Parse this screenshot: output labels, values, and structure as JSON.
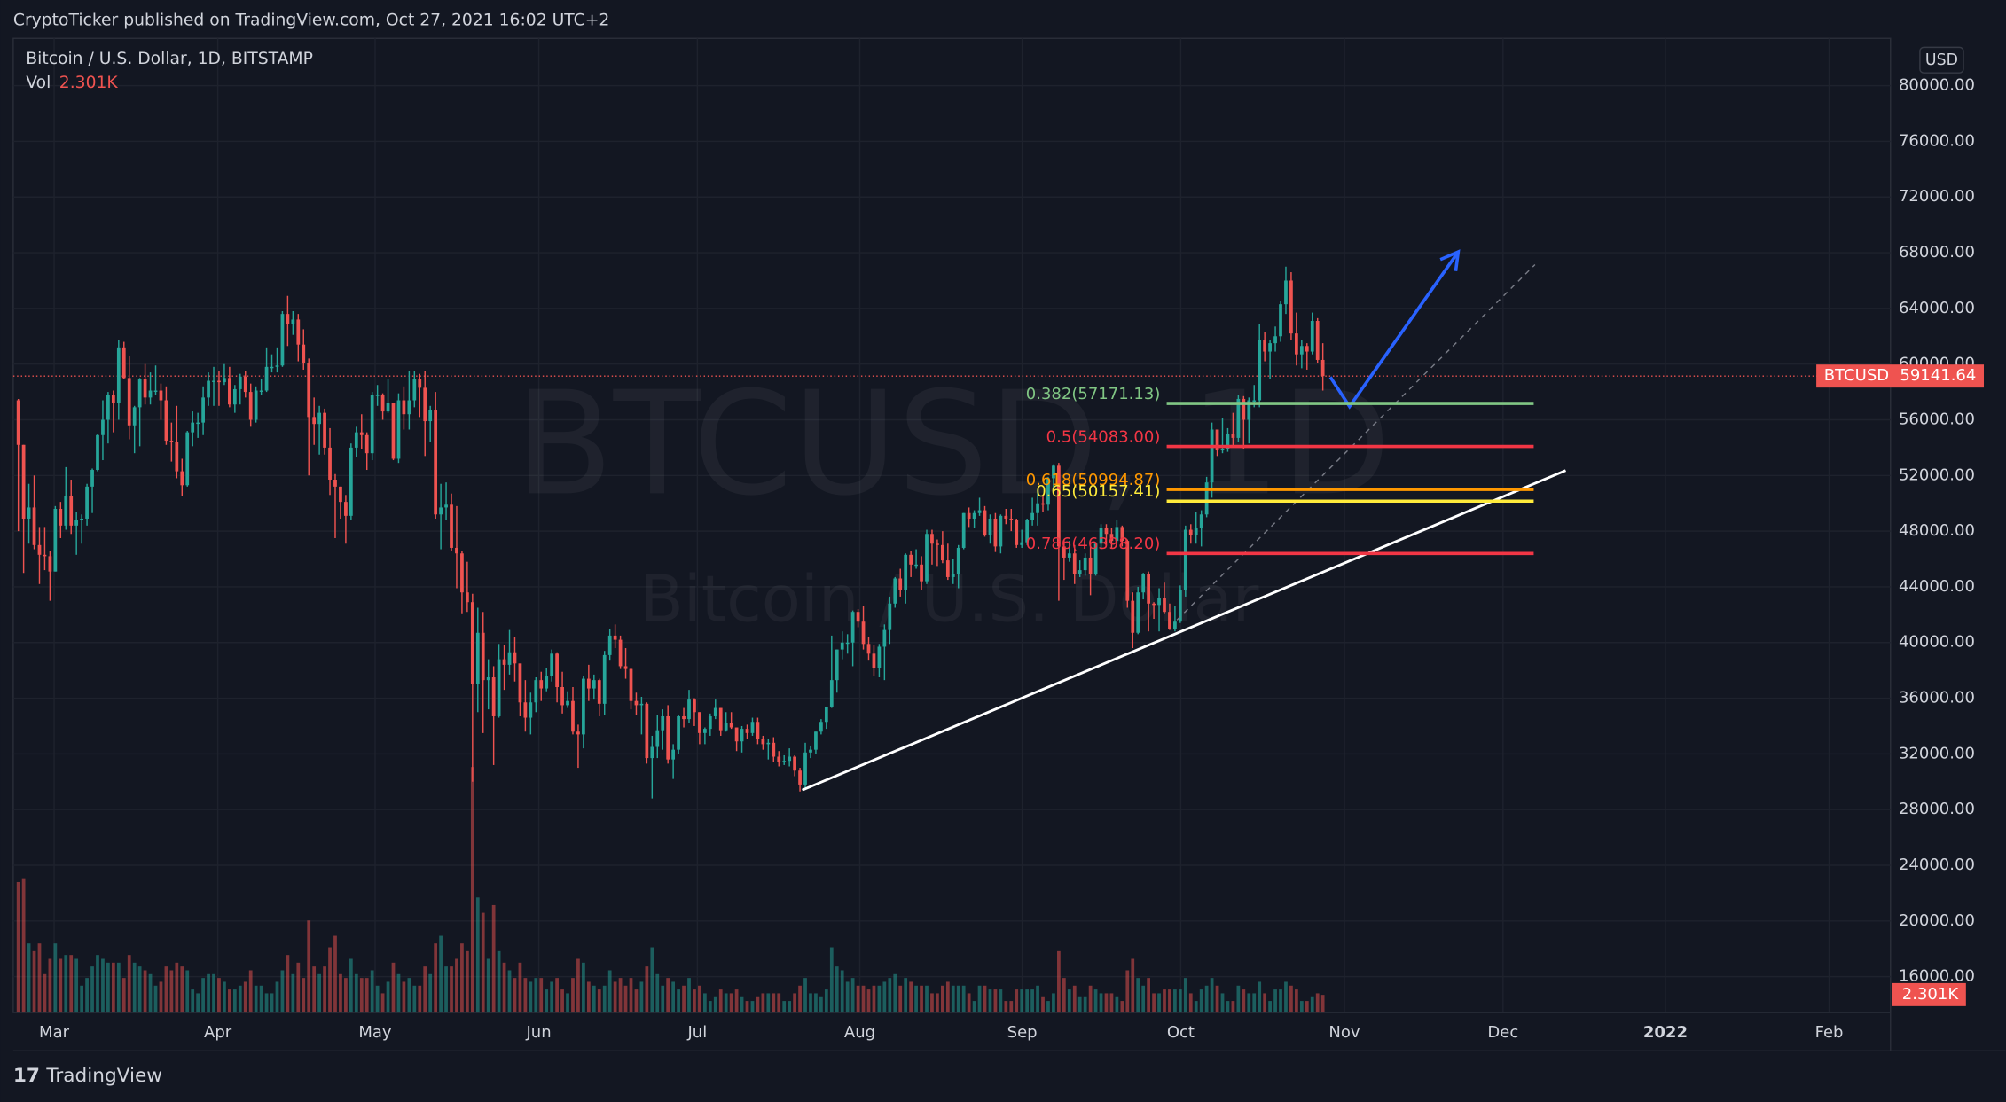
{
  "chart_data": {
    "type": "candlestick",
    "header": "CryptoTicker published on TradingView.com, Oct 27, 2021 16:02 UTC+2",
    "title": "Bitcoin / U.S. Dollar, 1D, BITSTAMP",
    "watermark_symbol": "BTCUSD, 1D",
    "watermark_description": "Bitcoin / U.S. Dollar",
    "currency": "USD",
    "symbol": "BTCUSD",
    "logo": "TradingView",
    "up_color": "#26a69a",
    "down_color": "#ef5350",
    "grid": true,
    "ylim": [
      13425,
      83398
    ],
    "yticks": [
      {
        "value": 16000,
        "label": "16000.00"
      },
      {
        "value": 20000,
        "label": "20000.00"
      },
      {
        "value": 24000,
        "label": "24000.00"
      },
      {
        "value": 28000,
        "label": "28000.00"
      },
      {
        "value": 32000,
        "label": "32000.00"
      },
      {
        "value": 36000,
        "label": "36000.00"
      },
      {
        "value": 40000,
        "label": "40000.00"
      },
      {
        "value": 44000,
        "label": "44000.00"
      },
      {
        "value": 48000,
        "label": "48000.00"
      },
      {
        "value": 52000,
        "label": "52000.00"
      },
      {
        "value": 56000,
        "label": "56000.00"
      },
      {
        "value": 60000,
        "label": "60000.00"
      },
      {
        "value": 64000,
        "label": "64000.00"
      },
      {
        "value": 68000,
        "label": "68000.00"
      },
      {
        "value": 72000,
        "label": "72000.00"
      },
      {
        "value": 76000,
        "label": "76000.00"
      },
      {
        "value": 80000,
        "label": "80000.00"
      }
    ],
    "xtick_labels": [
      "Mar",
      "Apr",
      "May",
      "Jun",
      "Jul",
      "Aug",
      "Sep",
      "Oct",
      "Nov",
      "Dec",
      "2022",
      "Feb"
    ],
    "open": [
      57400,
      54200,
      48900,
      49700,
      47000,
      46300,
      46200,
      45100,
      49600,
      48400,
      50500,
      48400,
      48800,
      48900,
      51200,
      52400,
      54900,
      56000,
      57800,
      57200,
      61200,
      59000,
      55600,
      56900,
      58900,
      57600,
      58100,
      58100,
      57400,
      54500,
      54400,
      52300,
      51300,
      55100,
      55800,
      55800,
      57600,
      58800,
      58800,
      58700,
      59000,
      57100,
      58200,
      59100,
      58000,
      56000,
      58100,
      58100,
      59800,
      59800,
      59900,
      63600,
      62900,
      63200,
      61400,
      60100,
      56200,
      55700,
      56500,
      54000,
      51700,
      51200,
      50100,
      49100,
      54000,
      55100,
      54900,
      53600,
      57800,
      57800,
      56600,
      57200,
      53200,
      57400,
      56400,
      57400,
      58900,
      58300,
      55900,
      56700,
      49200,
      49700,
      49900,
      46800,
      46400,
      43600,
      42900,
      37000,
      40700,
      37300,
      37500,
      34700,
      38800,
      38400,
      39300,
      38500,
      35700,
      34600,
      35700,
      37300,
      36700,
      37600,
      39200,
      36800,
      35500,
      35800,
      33600,
      33400,
      37400,
      36700,
      37300,
      35600,
      39100,
      40500,
      40200,
      38300,
      38100,
      35800,
      35500,
      35600,
      31700,
      32500,
      33700,
      34700,
      31600,
      32300,
      34700,
      34500,
      35900,
      35000,
      33500,
      33800,
      34700,
      35300,
      33700,
      34200,
      33900,
      32900,
      33800,
      33500,
      34300,
      33100,
      32700,
      32800,
      31800,
      31400,
      31500,
      31800,
      30800,
      29800,
      32100,
      32300,
      33600,
      34300,
      35400,
      37300,
      39500,
      40000,
      40000,
      42200,
      41500,
      39900,
      39200,
      38200,
      39700,
      40900,
      42800,
      44600,
      43800,
      46300,
      45600,
      45600,
      44400,
      47800,
      47100,
      47000,
      45900,
      44700,
      44900,
      46800,
      49300,
      48900,
      49300,
      49500,
      47700,
      48900,
      46900,
      49100,
      48900,
      48800,
      47000,
      47200,
      48800,
      49300,
      50000,
      49900,
      51800,
      52700,
      46900,
      46100,
      46400,
      44900,
      45200,
      46100,
      44900,
      47100,
      48200,
      47800,
      47300,
      48300,
      47300,
      43000,
      40700,
      43600,
      44900,
      42800,
      42700,
      43200,
      42200,
      41000,
      41500,
      43800,
      48100,
      47700,
      48200,
      49200,
      51500,
      55300,
      53800,
      53900,
      55000,
      54700,
      57500,
      56000,
      57400,
      57400,
      61700,
      60900,
      61500,
      62000,
      64300,
      66000,
      62200,
      60700,
      61300,
      60900,
      63100,
      60300
    ],
    "high": [
      57500,
      54200,
      51400,
      52000,
      48300,
      48300,
      46600,
      49800,
      50100,
      52600,
      51700,
      49400,
      49200,
      51400,
      52500,
      55000,
      57400,
      58000,
      58100,
      61700,
      61600,
      60600,
      57000,
      59000,
      60000,
      59400,
      59900,
      58600,
      58400,
      55800,
      57000,
      53200,
      55200,
      56600,
      56500,
      58400,
      59400,
      59800,
      59500,
      60000,
      59800,
      58500,
      59300,
      59500,
      58600,
      58400,
      58900,
      61200,
      60700,
      61200,
      63800,
      64900,
      63800,
      63600,
      62500,
      60400,
      57600,
      57000,
      56800,
      55400,
      52100,
      51200,
      50600,
      54300,
      55500,
      56400,
      55100,
      58000,
      58500,
      57900,
      58900,
      57200,
      57900,
      58400,
      59500,
      59500,
      59300,
      59500,
      57000,
      58000,
      51400,
      51500,
      50700,
      49800,
      46600,
      45800,
      43500,
      42500,
      42200,
      38800,
      38300,
      39900,
      39800,
      40900,
      40400,
      38200,
      37300,
      36400,
      37500,
      37900,
      38200,
      39500,
      39300,
      37900,
      36500,
      36800,
      34100,
      37600,
      38400,
      37700,
      37400,
      39400,
      41000,
      41300,
      40500,
      39600,
      38200,
      36400,
      36100,
      35700,
      33300,
      34800,
      35200,
      35500,
      32700,
      34800,
      35300,
      36600,
      36000,
      35000,
      33900,
      34900,
      35900,
      35300,
      35000,
      35000,
      33900,
      34000,
      34100,
      34600,
      34600,
      33300,
      33100,
      33200,
      32200,
      31900,
      32400,
      31900,
      31000,
      32800,
      32600,
      33600,
      34500,
      35400,
      40500,
      39500,
      40800,
      40600,
      42300,
      42400,
      42600,
      40400,
      39800,
      39900,
      41300,
      43300,
      44700,
      45300,
      46400,
      46600,
      46700,
      46200,
      48100,
      48100,
      47400,
      48000,
      47100,
      46000,
      47000,
      49300,
      49700,
      49500,
      50400,
      49800,
      49200,
      49300,
      49200,
      49600,
      49600,
      48900,
      48100,
      48900,
      50400,
      51000,
      50500,
      51900,
      52800,
      52900,
      47400,
      47300,
      47000,
      45900,
      46400,
      46900,
      47200,
      48500,
      48500,
      48200,
      48800,
      48400,
      47400,
      43600,
      44000,
      45000,
      45100,
      42900,
      43900,
      44300,
      42800,
      42600,
      44100,
      48400,
      48500,
      49400,
      49500,
      51900,
      55800,
      55300,
      56100,
      55400,
      56500,
      57800,
      57700,
      57600,
      58500,
      62900,
      62300,
      61700,
      62700,
      64500,
      67000,
      66600,
      63700,
      61700,
      61500,
      63700,
      63300,
      61500
    ],
    "low": [
      48000,
      45000,
      47100,
      46700,
      44200,
      45200,
      43000,
      45100,
      47500,
      48100,
      47800,
      46300,
      47100,
      48400,
      49300,
      52300,
      53100,
      54300,
      55100,
      56000,
      58900,
      54600,
      53600,
      54100,
      57100,
      57100,
      57800,
      56000,
      54200,
      53000,
      51800,
      50500,
      51200,
      54100,
      54700,
      54900,
      57000,
      57000,
      57000,
      58500,
      56900,
      56500,
      57100,
      57600,
      55500,
      55800,
      57800,
      58000,
      59400,
      59400,
      59800,
      61300,
      62100,
      60200,
      59600,
      52000,
      54200,
      53500,
      53500,
      50600,
      47500,
      48900,
      47100,
      48800,
      53300,
      53900,
      52400,
      53100,
      57000,
      56000,
      56500,
      53100,
      52900,
      55300,
      55300,
      56900,
      56200,
      53400,
      54400,
      48900,
      46700,
      48800,
      46600,
      43900,
      42100,
      42200,
      30000,
      35000,
      33500,
      35200,
      31200,
      34600,
      36600,
      37700,
      37200,
      34700,
      33600,
      33400,
      35000,
      35800,
      36500,
      37200,
      35700,
      34900,
      35300,
      33400,
      31000,
      32400,
      35800,
      35900,
      34700,
      34800,
      38700,
      39600,
      38100,
      37400,
      35200,
      34800,
      33400,
      31300,
      28800,
      31700,
      32300,
      31300,
      30200,
      32000,
      33900,
      34200,
      34000,
      32700,
      32700,
      33300,
      34500,
      33300,
      33600,
      33800,
      32200,
      32100,
      33100,
      33300,
      32700,
      32300,
      31600,
      31400,
      31100,
      31200,
      31100,
      30400,
      29300,
      29500,
      31700,
      32000,
      33400,
      33800,
      35300,
      36400,
      38800,
      39200,
      38300,
      41100,
      39500,
      38700,
      37600,
      37500,
      37300,
      39900,
      42500,
      43300,
      42800,
      44700,
      45300,
      43800,
      44200,
      45600,
      45500,
      45700,
      44500,
      44200,
      43900,
      46700,
      48300,
      48200,
      49100,
      47600,
      47100,
      46500,
      46400,
      48500,
      48000,
      46800,
      46800,
      47000,
      48400,
      48400,
      49400,
      49500,
      50900,
      43000,
      44500,
      45800,
      44200,
      44700,
      44800,
      43400,
      44800,
      46700,
      47000,
      46800,
      47100,
      46900,
      42500,
      39600,
      40600,
      43100,
      40800,
      41700,
      40800,
      42100,
      40900,
      40800,
      41400,
      43300,
      47100,
      47100,
      46900,
      49000,
      50400,
      53400,
      53600,
      53700,
      54100,
      54400,
      53900,
      54300,
      56900,
      56900,
      60200,
      58900,
      60900,
      61600,
      63600,
      61700,
      59900,
      59700,
      59600,
      60700,
      60100,
      58100
    ],
    "close": [
      54200,
      48900,
      49700,
      47000,
      46300,
      46200,
      45100,
      49600,
      48400,
      50500,
      48400,
      48800,
      48900,
      51200,
      52400,
      54900,
      56000,
      57800,
      57200,
      61200,
      59000,
      55600,
      56900,
      58900,
      57600,
      58100,
      58100,
      57400,
      54500,
      54400,
      52300,
      51300,
      55100,
      55800,
      55800,
      57600,
      58800,
      58800,
      58700,
      59000,
      57100,
      58200,
      59100,
      58000,
      56000,
      58100,
      58100,
      59800,
      59800,
      59900,
      63600,
      62900,
      63200,
      61400,
      60100,
      56200,
      55700,
      56500,
      54000,
      51700,
      51200,
      50100,
      49100,
      54000,
      55100,
      54900,
      53600,
      57800,
      57800,
      56600,
      57200,
      53200,
      57400,
      56400,
      57400,
      58900,
      58300,
      55900,
      56700,
      49200,
      49700,
      49900,
      46800,
      46400,
      43600,
      42900,
      37000,
      40700,
      37300,
      37500,
      34700,
      38800,
      38400,
      39300,
      38500,
      35700,
      34600,
      35700,
      37300,
      36700,
      37600,
      39200,
      36800,
      35500,
      35800,
      33600,
      33400,
      37400,
      36700,
      37300,
      35600,
      39100,
      40500,
      40200,
      38300,
      38100,
      35800,
      35500,
      35600,
      31700,
      32500,
      33700,
      34700,
      31600,
      32300,
      34700,
      34500,
      35900,
      35000,
      33500,
      33800,
      34700,
      35300,
      33700,
      34200,
      33900,
      32900,
      33800,
      33500,
      34300,
      33100,
      32700,
      32800,
      31800,
      31400,
      31500,
      31800,
      30800,
      29800,
      32100,
      32300,
      33600,
      34300,
      35400,
      37300,
      39500,
      40000,
      40000,
      42200,
      41500,
      39900,
      39200,
      38200,
      39700,
      40900,
      42800,
      44600,
      43800,
      46300,
      45600,
      45600,
      44400,
      47800,
      47100,
      47000,
      45900,
      44700,
      44900,
      46800,
      49300,
      48900,
      49300,
      49500,
      47700,
      48900,
      46900,
      49100,
      48900,
      48800,
      47000,
      47200,
      48800,
      49300,
      50000,
      49900,
      51800,
      52700,
      46900,
      46100,
      46400,
      44900,
      45200,
      46100,
      44900,
      47100,
      48200,
      47800,
      47300,
      48300,
      47300,
      43000,
      40700,
      43600,
      44900,
      42800,
      42700,
      43200,
      42200,
      41000,
      41500,
      43800,
      48100,
      47700,
      48200,
      49200,
      51500,
      55300,
      53800,
      53900,
      55000,
      54700,
      57500,
      56000,
      57400,
      57400,
      61700,
      60900,
      61500,
      62000,
      64300,
      66000,
      62200,
      60700,
      61300,
      60900,
      63100,
      60300,
      59141.64
    ],
    "volume": {
      "name": "Vol",
      "last_label": "2.301K",
      "values": [
        17000,
        17500,
        9000,
        8000,
        9000,
        5000,
        7000,
        9000,
        7000,
        7500,
        7500,
        7000,
        3500,
        4500,
        6000,
        7500,
        7000,
        6500,
        6500,
        6500,
        4500,
        7500,
        6500,
        6000,
        5500,
        5000,
        3500,
        4000,
        6000,
        5500,
        6500,
        6000,
        5500,
        3000,
        2500,
        4500,
        5000,
        5000,
        4500,
        4000,
        3000,
        3000,
        3500,
        4000,
        5500,
        3500,
        3500,
        2500,
        2500,
        4000,
        5500,
        7500,
        5000,
        6500,
        4500,
        12000,
        6000,
        5000,
        6000,
        8500,
        10000,
        5000,
        4500,
        7000,
        5000,
        4500,
        4500,
        5500,
        3500,
        2500,
        4000,
        6500,
        5000,
        4000,
        4500,
        3500,
        3500,
        6000,
        5000,
        9000,
        10000,
        6000,
        6000,
        7000,
        9000,
        8000,
        32000,
        15000,
        13000,
        7000,
        14000,
        8000,
        6500,
        5500,
        4500,
        6500,
        4500,
        4000,
        4500,
        4500,
        3000,
        4000,
        4500,
        3000,
        2500,
        4500,
        7000,
        6500,
        4000,
        3500,
        3000,
        3500,
        5500,
        4000,
        4500,
        3500,
        4500,
        3000,
        4000,
        6000,
        8500,
        5000,
        3500,
        4500,
        4000,
        3000,
        3500,
        4500,
        3000,
        3500,
        2500,
        1500,
        2000,
        3000,
        2500,
        2500,
        3000,
        2000,
        1500,
        1500,
        2000,
        2500,
        2500,
        2500,
        2500,
        1500,
        1500,
        2500,
        3500,
        4500,
        2500,
        2500,
        2000,
        3000,
        8500,
        6000,
        5500,
        4000,
        4500,
        3500,
        3500,
        3000,
        3500,
        3500,
        4000,
        4500,
        5000,
        3500,
        4500,
        4000,
        3500,
        3500,
        3500,
        2500,
        2500,
        3500,
        4000,
        3500,
        3500,
        3500,
        2500,
        1500,
        3500,
        3500,
        3000,
        3000,
        3000,
        1500,
        1500,
        3000,
        3000,
        3000,
        3000,
        3500,
        2000,
        1500,
        2500,
        8000,
        4500,
        3000,
        3500,
        2000,
        2000,
        3500,
        3000,
        2500,
        2500,
        2500,
        2000,
        1500,
        5500,
        7000,
        4500,
        3500,
        4500,
        2500,
        2500,
        3000,
        3000,
        3000,
        3000,
        4500,
        2500,
        1500,
        3000,
        3500,
        4500,
        3500,
        2500,
        1500,
        1500,
        3500,
        3000,
        2500,
        2500,
        4000,
        2500,
        1500,
        3000,
        3000,
        4000,
        3500,
        3000,
        1500,
        1500,
        2000,
        2500,
        2301
      ]
    },
    "fib_levels": [
      {
        "label": "0.382(57171.13)",
        "value": 57171.13,
        "color": "#81c784"
      },
      {
        "label": "0.5(54083.00)",
        "value": 54083.0,
        "color": "#f23645"
      },
      {
        "label": "0.618(50994.87)",
        "value": 50994.87,
        "color": "#ff9800"
      },
      {
        "label": "0.65(50157.41)",
        "value": 50157.41,
        "color": "#ffeb3b"
      },
      {
        "label": "0.786(46398.20)",
        "value": 46398.2,
        "color": "#f23645"
      }
    ]
  }
}
